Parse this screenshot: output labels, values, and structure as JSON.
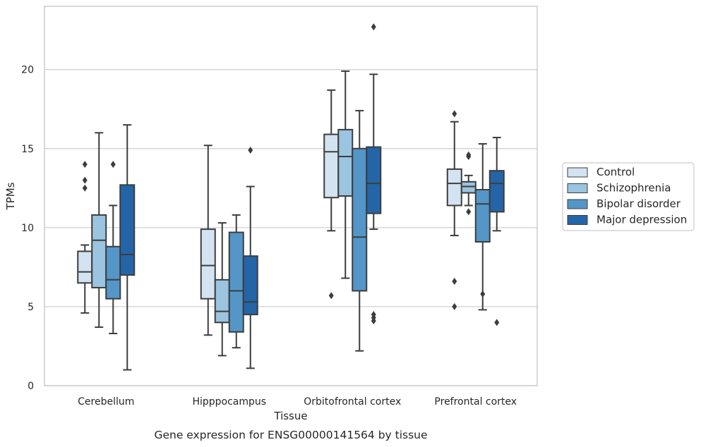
{
  "chart_data": {
    "type": "box",
    "caption": "Gene expression for ENSG00000141564 by tissue",
    "xlabel": "Tissue",
    "ylabel": "TPMs",
    "ylim": [
      0,
      24
    ],
    "yticks": [
      0,
      5,
      10,
      15,
      20
    ],
    "grid": "horizontal",
    "legend_position": "right",
    "categories": [
      "Cerebellum",
      "Hipppocampus",
      "Orbitofrontal cortex",
      "Prefrontal cortex"
    ],
    "series": [
      {
        "name": "Control",
        "color": "#d4e3f2",
        "boxes": [
          {
            "whislo": 4.6,
            "q1": 6.5,
            "med": 7.2,
            "q3": 8.5,
            "whishi": 8.9,
            "fliers": [
              12.5,
              13.0,
              14.0
            ]
          },
          {
            "whislo": 3.2,
            "q1": 5.5,
            "med": 7.6,
            "q3": 9.9,
            "whishi": 15.2,
            "fliers": []
          },
          {
            "whislo": 9.8,
            "q1": 11.9,
            "med": 14.8,
            "q3": 15.9,
            "whishi": 18.7,
            "fliers": [
              5.7
            ]
          },
          {
            "whislo": 9.5,
            "q1": 11.4,
            "med": 12.8,
            "q3": 13.7,
            "whishi": 16.7,
            "fliers": [
              5.0,
              6.6,
              17.2
            ]
          }
        ]
      },
      {
        "name": "Schizophrenia",
        "color": "#9ac4e0",
        "boxes": [
          {
            "whislo": 3.7,
            "q1": 6.2,
            "med": 9.2,
            "q3": 10.8,
            "whishi": 16.0,
            "fliers": []
          },
          {
            "whislo": 1.9,
            "q1": 4.0,
            "med": 4.7,
            "q3": 6.7,
            "whishi": 10.3,
            "fliers": []
          },
          {
            "whislo": 6.8,
            "q1": 12.0,
            "med": 14.5,
            "q3": 16.2,
            "whishi": 19.9,
            "fliers": []
          },
          {
            "whislo": 11.4,
            "q1": 12.2,
            "med": 12.6,
            "q3": 12.9,
            "whishi": 13.3,
            "fliers": [
              11.0,
              14.5,
              14.6
            ]
          }
        ]
      },
      {
        "name": "Bipolar disorder",
        "color": "#5496c8",
        "boxes": [
          {
            "whislo": 3.3,
            "q1": 5.5,
            "med": 6.7,
            "q3": 8.8,
            "whishi": 11.4,
            "fliers": [
              14.0
            ]
          },
          {
            "whislo": 2.4,
            "q1": 3.4,
            "med": 6.0,
            "q3": 9.7,
            "whishi": 10.8,
            "fliers": []
          },
          {
            "whislo": 2.2,
            "q1": 6.0,
            "med": 9.4,
            "q3": 15.0,
            "whishi": 17.4,
            "fliers": []
          },
          {
            "whislo": 4.8,
            "q1": 9.1,
            "med": 11.5,
            "q3": 12.4,
            "whishi": 15.3,
            "fliers": [
              5.8
            ]
          }
        ]
      },
      {
        "name": "Major depression",
        "color": "#2465a8",
        "boxes": [
          {
            "whislo": 1.0,
            "q1": 7.0,
            "med": 8.3,
            "q3": 12.7,
            "whishi": 16.5,
            "fliers": []
          },
          {
            "whislo": 1.1,
            "q1": 4.5,
            "med": 5.3,
            "q3": 8.2,
            "whishi": 12.6,
            "fliers": [
              14.9
            ]
          },
          {
            "whislo": 9.9,
            "q1": 10.9,
            "med": 12.8,
            "q3": 15.1,
            "whishi": 19.7,
            "fliers": [
              4.1,
              4.3,
              4.5,
              22.7
            ]
          },
          {
            "whislo": 9.8,
            "q1": 11.0,
            "med": 12.8,
            "q3": 13.6,
            "whishi": 15.7,
            "fliers": [
              4.0
            ]
          }
        ]
      }
    ]
  }
}
